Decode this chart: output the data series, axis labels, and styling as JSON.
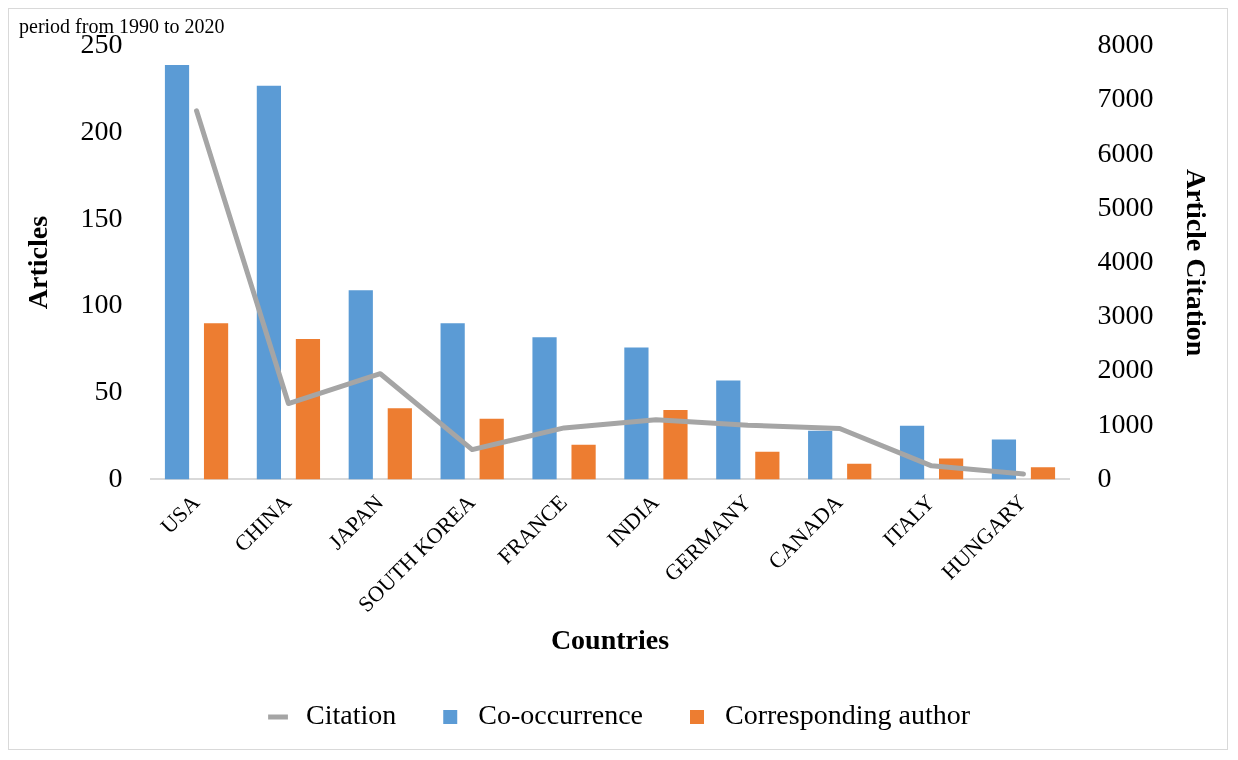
{
  "chart_data": {
    "type": "bar",
    "title": "period from 1990 to 2020",
    "xlabel": "Countries",
    "ylabel": "Articles",
    "y2label": "Article Citation",
    "categories": [
      "USA",
      "CHINA",
      "JAPAN",
      "SOUTH KOREA",
      "FRANCE",
      "INDIA",
      "GERMANY",
      "CANADA",
      "ITALY",
      "HUNGARY"
    ],
    "series": [
      {
        "name": "Co-occurrence",
        "color": "#5b9bd5",
        "values": [
          239,
          227,
          109,
          90,
          82,
          76,
          57,
          28,
          31,
          23
        ]
      },
      {
        "name": "Corresponding author",
        "color": "#ed7d31",
        "values": [
          90,
          81,
          41,
          35,
          20,
          40,
          16,
          9,
          12,
          7
        ]
      },
      {
        "name": "Citation",
        "type": "line",
        "axis": "y2",
        "color": "#a5a5a5",
        "marker": "none",
        "values": [
          6800,
          1400,
          1950,
          550,
          950,
          1100,
          1000,
          940,
          250,
          100
        ]
      }
    ],
    "ylim": [
      0,
      250
    ],
    "yticks": [
      0,
      50,
      100,
      150,
      200,
      250
    ],
    "y2lim": [
      0,
      8000
    ],
    "y2ticks": [
      0,
      1000,
      2000,
      3000,
      4000,
      5000,
      6000,
      7000,
      8000
    ],
    "grid": false,
    "legend": "bottom"
  }
}
